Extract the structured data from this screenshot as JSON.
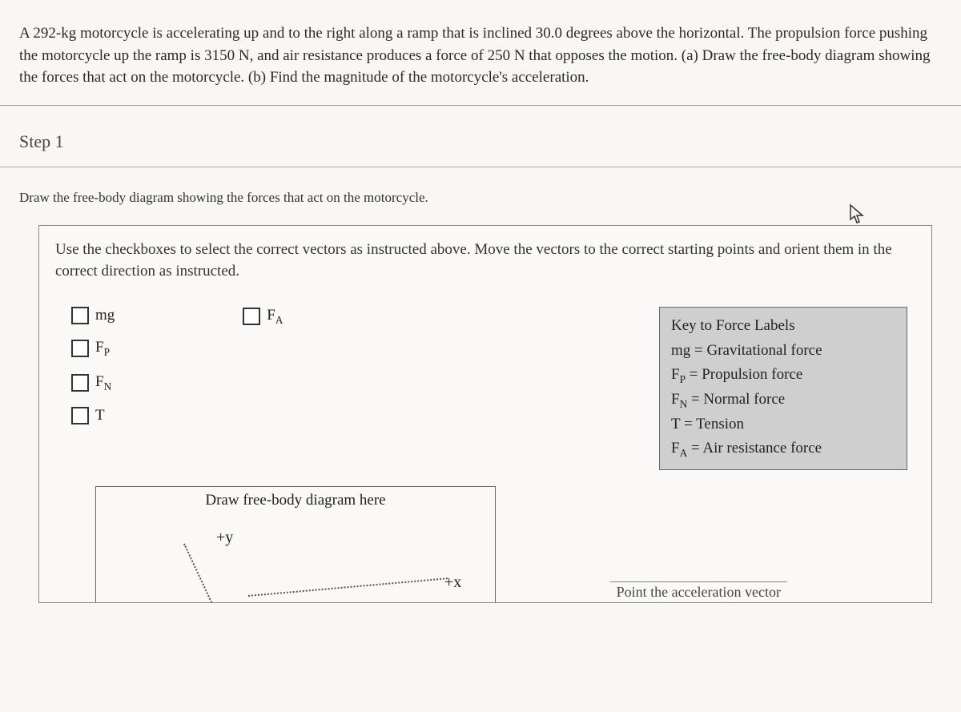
{
  "problem": {
    "text": "A 292-kg motorcycle is accelerating up and to the right along a ramp that is inclined 30.0 degrees above the horizontal. The propulsion force pushing the motorcycle up the ramp is 3150 N, and air resistance produces a force of 250 N that opposes the motion. (a) Draw the free-body diagram showing the forces that act on the motorcycle. (b) Find the magnitude of the motorcycle's acceleration."
  },
  "step": {
    "label": "Step 1",
    "instruction": "Draw the free-body diagram showing the forces that act on the motorcycle."
  },
  "diagram": {
    "instructions": "Use the checkboxes to select the correct vectors as instructed above. Move the vectors to the correct starting points and orient them in the correct direction as instructed.",
    "checkboxes_col1": [
      {
        "label": "mg"
      },
      {
        "label_html": "F<span class=\"sub\">P</span>"
      },
      {
        "label_html": "F<span class=\"sub\">N</span>"
      },
      {
        "label": "T"
      }
    ],
    "checkboxes_col2": [
      {
        "label_html": "F<span class=\"sub\">A</span>"
      }
    ],
    "key": {
      "title": "Key to Force Labels",
      "rows": [
        "mg = Gravitational force",
        "F<span class=\"sub\">P</span> = Propulsion force",
        "F<span class=\"sub\">N</span> = Normal force",
        "T = Tension",
        "F<span class=\"sub\">A</span> = Air resistance force"
      ]
    },
    "draw_title": "Draw free-body diagram here",
    "axis_y": "+y",
    "axis_x": "+x"
  },
  "cutoff_text": "Point the acceleration vector",
  "colors": {
    "background": "#f9f7f5",
    "border": "#888888",
    "text": "#2a2a2a",
    "keybox_bg": "#cfcfcf"
  }
}
